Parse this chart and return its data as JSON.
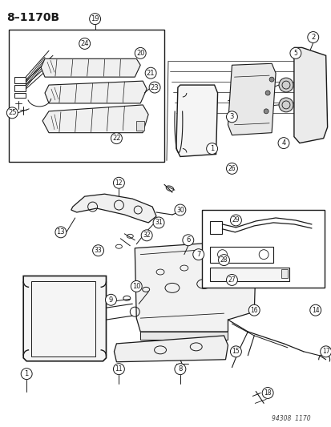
{
  "title": "8–1170B",
  "background_color": "#ffffff",
  "line_color": "#1a1a1a",
  "fig_width": 4.14,
  "fig_height": 5.33,
  "dpi": 100,
  "watermark": "94308  1170"
}
